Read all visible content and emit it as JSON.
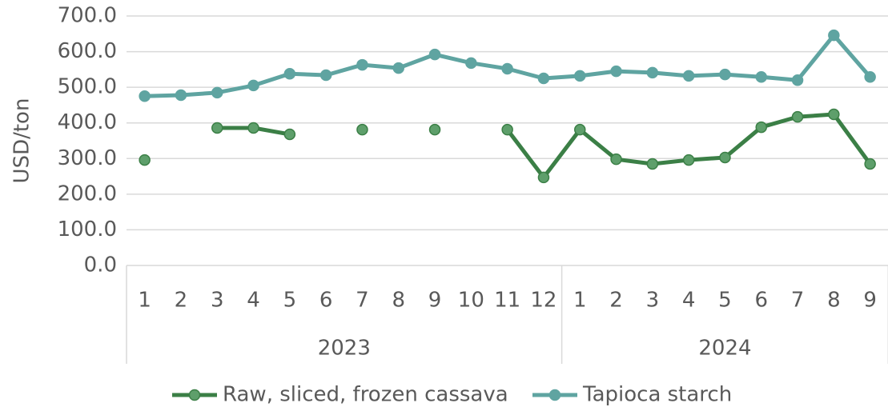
{
  "chart_data": {
    "type": "line",
    "y_label": "USD/ton",
    "categories": [
      "1",
      "2",
      "3",
      "4",
      "5",
      "6",
      "7",
      "8",
      "9",
      "10",
      "11",
      "12",
      "1",
      "2",
      "3",
      "4",
      "5",
      "6",
      "7",
      "8",
      "9"
    ],
    "category_groups": [
      {
        "label": "2023",
        "count": 12
      },
      {
        "label": "2024",
        "count": 9
      }
    ],
    "series": [
      {
        "name": "Raw, sliced, frozen cassava",
        "color": "#3b7f46",
        "marker_color": "#5e9f6b",
        "values": [
          296,
          null,
          386,
          386,
          368,
          null,
          381,
          null,
          381,
          null,
          381,
          247,
          381,
          298,
          285,
          296,
          303,
          388,
          417,
          424,
          285
        ]
      },
      {
        "name": "Tapioca starch",
        "color": "#5fa4a1",
        "marker_color": "#5fa4a1",
        "values": [
          475,
          478,
          485,
          505,
          538,
          534,
          563,
          554,
          592,
          568,
          552,
          525,
          532,
          545,
          541,
          532,
          536,
          529,
          520,
          646,
          529
        ]
      }
    ],
    "ylim": [
      0,
      700
    ],
    "yticks": [
      {
        "value": 0,
        "label": "0.0"
      },
      {
        "value": 100,
        "label": "100.0"
      },
      {
        "value": 200,
        "label": "200.0"
      },
      {
        "value": 300,
        "label": "300.0"
      },
      {
        "value": 400,
        "label": "400.0"
      },
      {
        "value": 500,
        "label": "500.0"
      },
      {
        "value": 600,
        "label": "600.0"
      },
      {
        "value": 700,
        "label": "700.0"
      }
    ],
    "grid": true,
    "legend": "bottom"
  }
}
